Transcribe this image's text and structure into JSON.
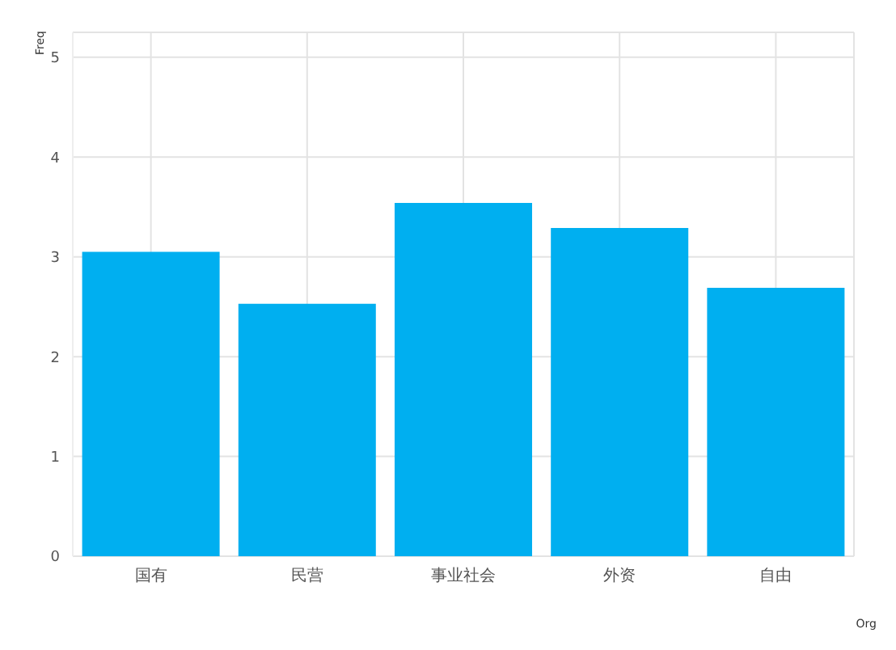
{
  "chart_data": {
    "type": "bar",
    "xlabel": "Org",
    "ylabel": "Freq",
    "categories": [
      "国有",
      "民营",
      "事业社会",
      "外资",
      "自由"
    ],
    "values": [
      3.05,
      2.53,
      3.54,
      3.29,
      2.69
    ],
    "color": "#00aff0",
    "ylim": [
      0,
      5.25
    ],
    "yticks": [
      0,
      1,
      2,
      3,
      4,
      5
    ],
    "grid": true
  }
}
